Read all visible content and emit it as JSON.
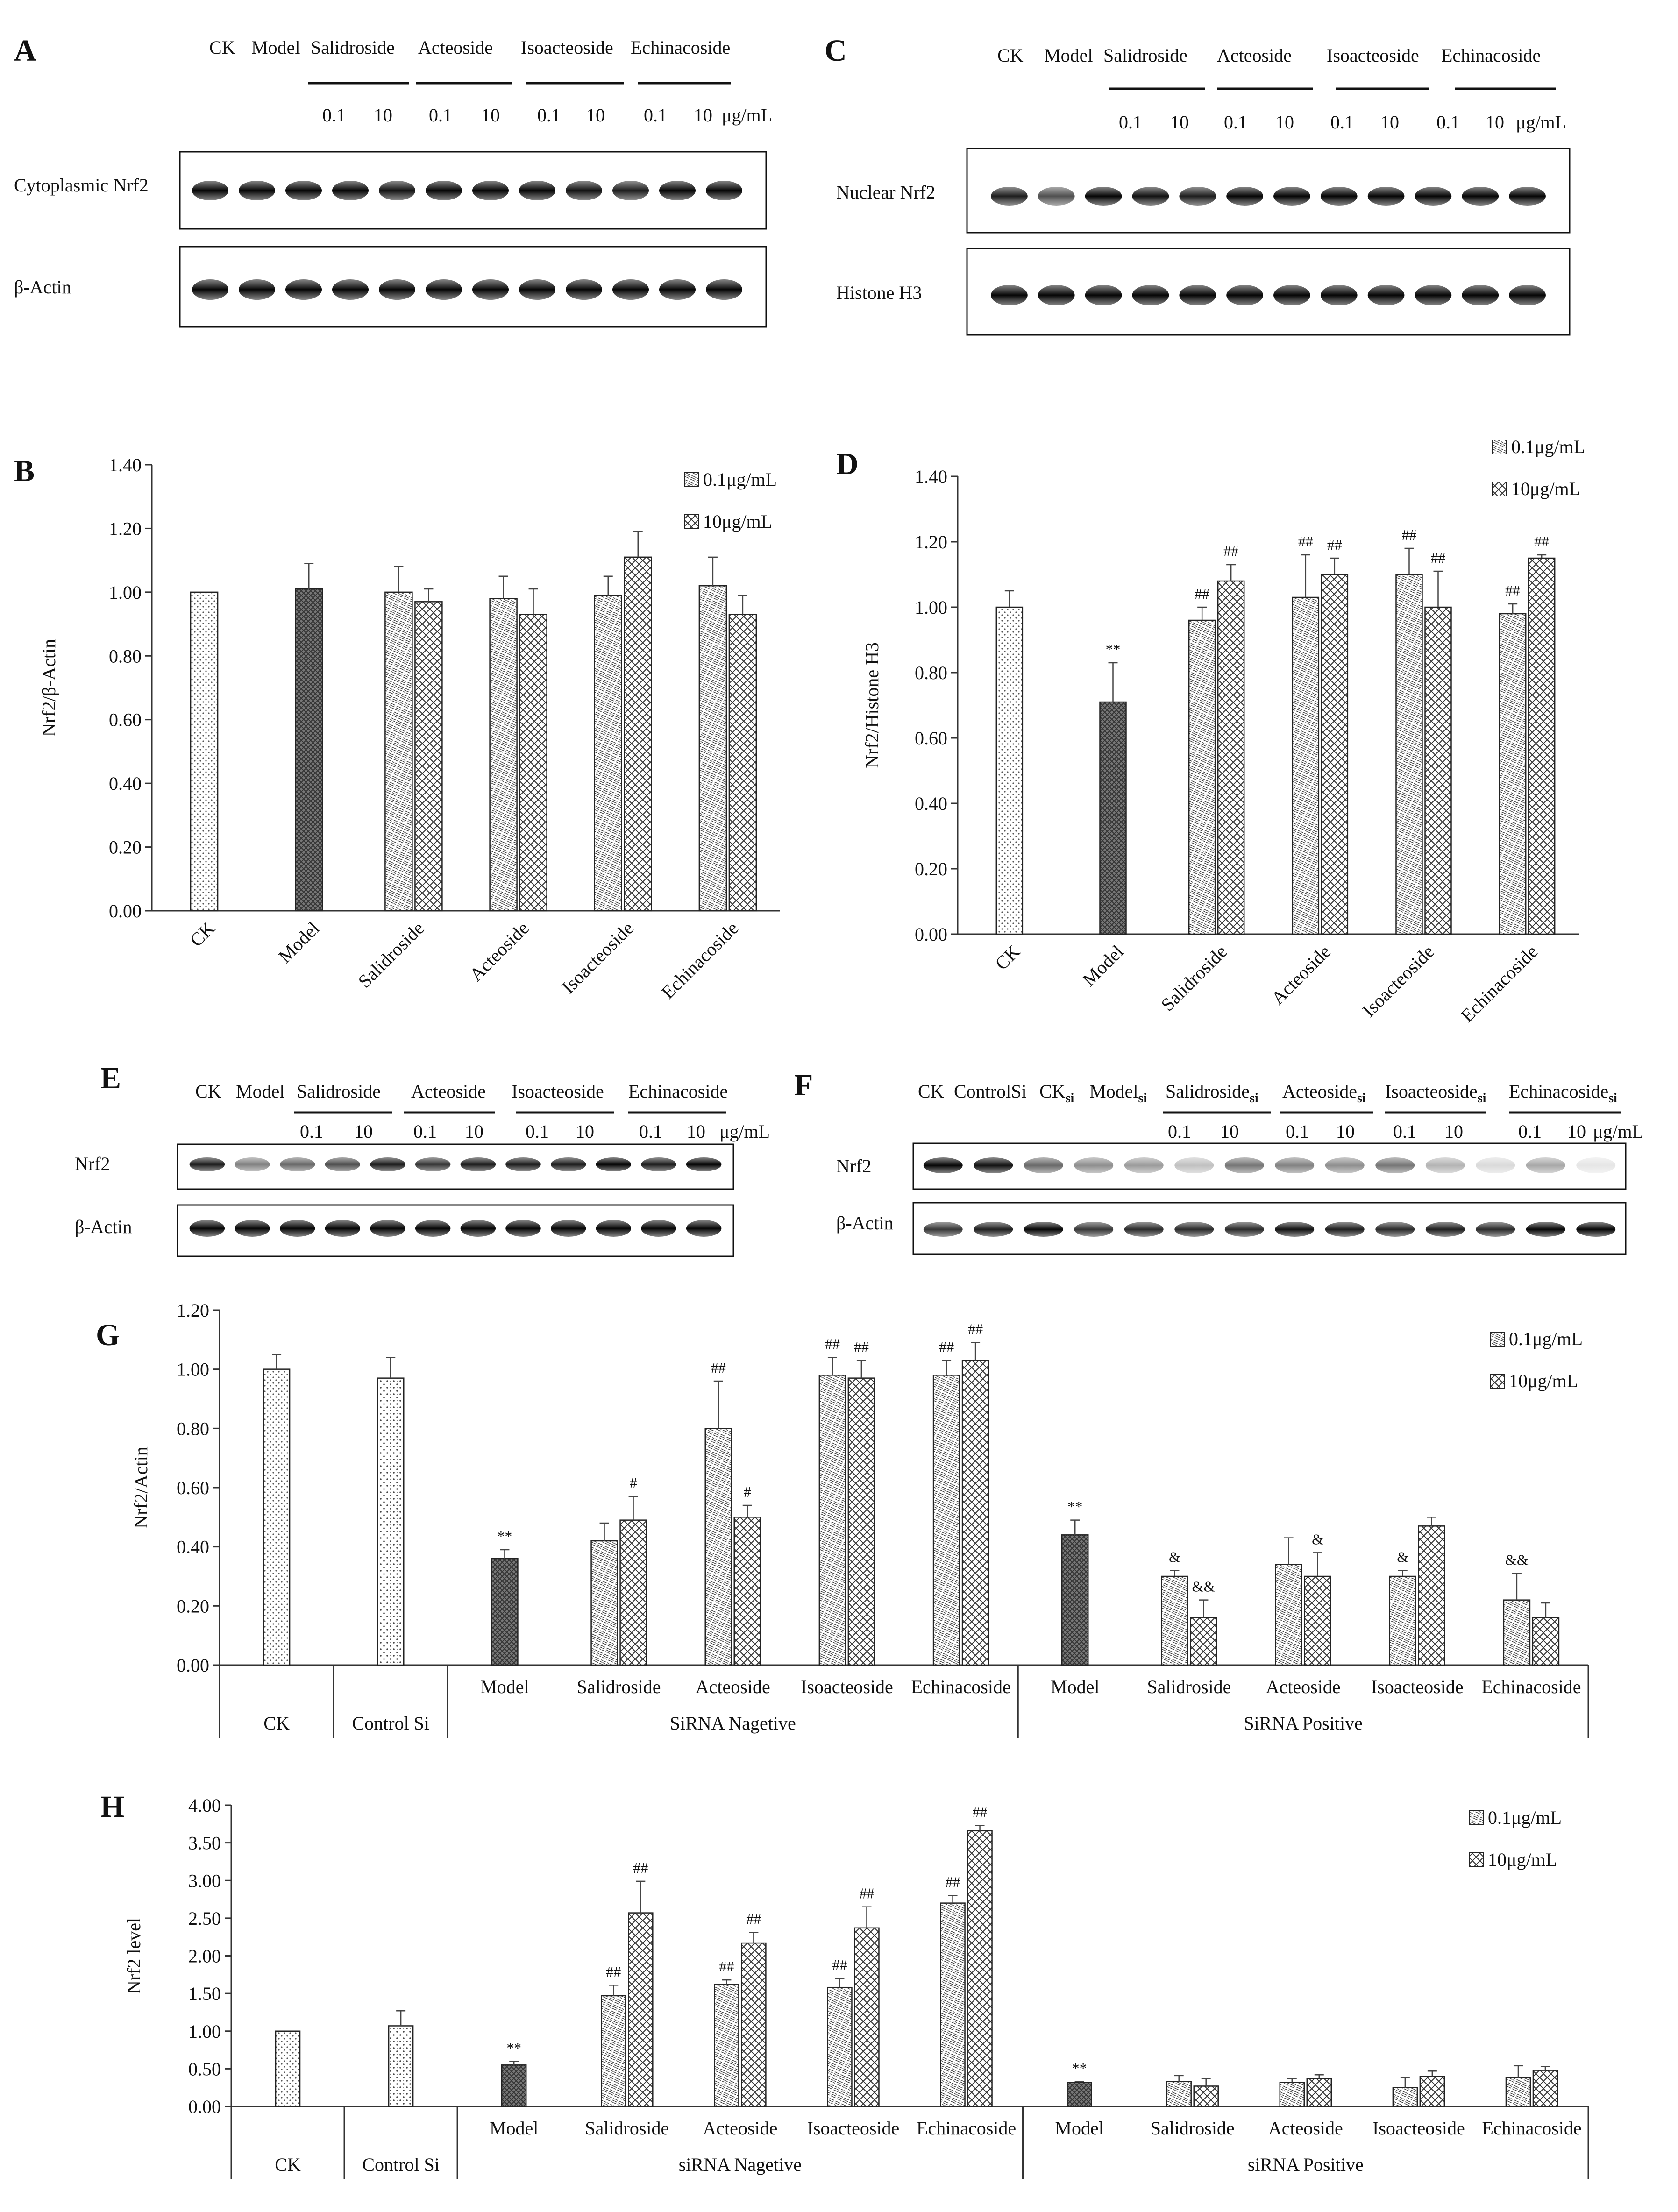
{
  "figure": {
    "panel_letters": [
      "A",
      "B",
      "C",
      "D",
      "E",
      "F",
      "G",
      "H"
    ],
    "units": "μg/mL",
    "dose_low": "0.1",
    "dose_high": "10"
  },
  "blots": {
    "A": {
      "groups": [
        "CK",
        "Model",
        "Salidroside",
        "Acteoside",
        "Isoacteoside",
        "Echinacoside"
      ],
      "rows": [
        "Cytoplasmic Nrf2",
        "β-Actin"
      ]
    },
    "C": {
      "groups": [
        "CK",
        "Model",
        "Salidroside",
        "Acteoside",
        "Isoacteoside",
        "Echinacoside"
      ],
      "rows": [
        "Nuclear Nrf2",
        "Histone H3"
      ]
    },
    "E": {
      "groups": [
        "CK",
        "Model",
        "Salidroside",
        "Acteoside",
        "Isoacteoside",
        "Echinacoside"
      ],
      "rows": [
        "Nrf2",
        "β-Actin"
      ]
    },
    "F": {
      "groups": [
        "CK",
        "ControlSi",
        "CK",
        "Model",
        "Salidroside",
        "Acteoside",
        "Isoacteoside",
        "Echinacoside"
      ],
      "subscript": "si",
      "rows": [
        "Nrf2",
        "β-Actin"
      ]
    }
  },
  "chart_data": [
    {
      "panel": "B",
      "type": "bar",
      "ylabel": "Nrf2/β-Actin",
      "ylim": [
        0,
        1.4
      ],
      "yticks": [
        "0.00",
        "0.20",
        "0.40",
        "0.60",
        "0.80",
        "1.00",
        "1.20",
        "1.40"
      ],
      "legend": [
        "0.1μg/mL",
        "10μg/mL"
      ],
      "categories": [
        "CK",
        "Model",
        "Salidroside",
        "Acteoside",
        "Isoacteoside",
        "Echinacoside"
      ],
      "bars": [
        {
          "cat": 0,
          "series": "ctrl",
          "value": 1.0,
          "err": 0
        },
        {
          "cat": 1,
          "series": "model",
          "value": 1.01,
          "err": 0.08
        },
        {
          "cat": 2,
          "series": "low",
          "value": 1.0,
          "err": 0.08
        },
        {
          "cat": 2,
          "series": "high",
          "value": 0.97,
          "err": 0.04
        },
        {
          "cat": 3,
          "series": "low",
          "value": 0.98,
          "err": 0.07
        },
        {
          "cat": 3,
          "series": "high",
          "value": 0.93,
          "err": 0.08
        },
        {
          "cat": 4,
          "series": "low",
          "value": 0.99,
          "err": 0.06
        },
        {
          "cat": 4,
          "series": "high",
          "value": 1.11,
          "err": 0.08
        },
        {
          "cat": 5,
          "series": "low",
          "value": 1.02,
          "err": 0.09
        },
        {
          "cat": 5,
          "series": "high",
          "value": 0.93,
          "err": 0.06
        }
      ]
    },
    {
      "panel": "D",
      "type": "bar",
      "ylabel": "Nrf2/Histone H3",
      "ylim": [
        0,
        1.4
      ],
      "yticks": [
        "0.00",
        "0.20",
        "0.40",
        "0.60",
        "0.80",
        "1.00",
        "1.20",
        "1.40"
      ],
      "legend": [
        "0.1μg/mL",
        "10μg/mL"
      ],
      "categories": [
        "CK",
        "Model",
        "Salidroside",
        "Acteoside",
        "Isoacteoside",
        "Echinacoside"
      ],
      "bars": [
        {
          "cat": 0,
          "series": "ctrl",
          "value": 1.0,
          "err": 0.05
        },
        {
          "cat": 1,
          "series": "model",
          "value": 0.71,
          "err": 0.12,
          "sig": "**"
        },
        {
          "cat": 2,
          "series": "low",
          "value": 0.96,
          "err": 0.04,
          "sig": "##"
        },
        {
          "cat": 2,
          "series": "high",
          "value": 1.08,
          "err": 0.05,
          "sig": "##"
        },
        {
          "cat": 3,
          "series": "low",
          "value": 1.03,
          "err": 0.13,
          "sig": "##"
        },
        {
          "cat": 3,
          "series": "high",
          "value": 1.1,
          "err": 0.05,
          "sig": "##"
        },
        {
          "cat": 4,
          "series": "low",
          "value": 1.1,
          "err": 0.08,
          "sig": "##"
        },
        {
          "cat": 4,
          "series": "high",
          "value": 1.0,
          "err": 0.11,
          "sig": "##"
        },
        {
          "cat": 5,
          "series": "low",
          "value": 0.98,
          "err": 0.03,
          "sig": "##"
        },
        {
          "cat": 5,
          "series": "high",
          "value": 1.15,
          "err": 0.01,
          "sig": "##"
        }
      ]
    },
    {
      "panel": "G",
      "type": "bar",
      "ylabel": "Nrf2/Actin",
      "ylim": [
        0,
        1.2
      ],
      "yticks": [
        "0.00",
        "0.20",
        "0.40",
        "0.60",
        "0.80",
        "1.00",
        "1.20"
      ],
      "legend": [
        "0.1μg/mL",
        "10μg/mL"
      ],
      "categories": [
        "CK",
        "Control Si",
        "Model",
        "Salidroside",
        "Acteoside",
        "Isoacteoside",
        "Echinacoside",
        "Model",
        "Salidroside",
        "Acteoside",
        "Isoacteoside",
        "Echinacoside"
      ],
      "groups": [
        {
          "label": "CK",
          "from": 0,
          "to": 0
        },
        {
          "label": "Control Si",
          "from": 1,
          "to": 1
        },
        {
          "label": "SiRNA Nagetive",
          "from": 2,
          "to": 6
        },
        {
          "label": "SiRNA Positive",
          "from": 7,
          "to": 11
        }
      ],
      "bars": [
        {
          "cat": 0,
          "series": "ctrl",
          "value": 1.0,
          "err": 0.05
        },
        {
          "cat": 1,
          "series": "ctrl2",
          "value": 0.97,
          "err": 0.07
        },
        {
          "cat": 2,
          "series": "model",
          "value": 0.36,
          "err": 0.03,
          "sig": "**"
        },
        {
          "cat": 3,
          "series": "low",
          "value": 0.42,
          "err": 0.06
        },
        {
          "cat": 3,
          "series": "high",
          "value": 0.49,
          "err": 0.08,
          "sig": "#"
        },
        {
          "cat": 4,
          "series": "low",
          "value": 0.8,
          "err": 0.16,
          "sig": "##"
        },
        {
          "cat": 4,
          "series": "high",
          "value": 0.5,
          "err": 0.04,
          "sig": "#"
        },
        {
          "cat": 5,
          "series": "low",
          "value": 0.98,
          "err": 0.06,
          "sig": "##"
        },
        {
          "cat": 5,
          "series": "high",
          "value": 0.97,
          "err": 0.06,
          "sig": "##"
        },
        {
          "cat": 6,
          "series": "low",
          "value": 0.98,
          "err": 0.05,
          "sig": "##"
        },
        {
          "cat": 6,
          "series": "high",
          "value": 1.03,
          "err": 0.06,
          "sig": "##"
        },
        {
          "cat": 7,
          "series": "model",
          "value": 0.44,
          "err": 0.05,
          "sig": "**"
        },
        {
          "cat": 8,
          "series": "low",
          "value": 0.3,
          "err": 0.02,
          "sig": "&"
        },
        {
          "cat": 8,
          "series": "high",
          "value": 0.16,
          "err": 0.06,
          "sig": "&&"
        },
        {
          "cat": 9,
          "series": "low",
          "value": 0.34,
          "err": 0.09
        },
        {
          "cat": 9,
          "series": "high",
          "value": 0.3,
          "err": 0.08,
          "sig": "&"
        },
        {
          "cat": 10,
          "series": "low",
          "value": 0.3,
          "err": 0.02,
          "sig": "&"
        },
        {
          "cat": 10,
          "series": "high",
          "value": 0.47,
          "err": 0.03
        },
        {
          "cat": 11,
          "series": "low",
          "value": 0.22,
          "err": 0.09,
          "sig": "&&"
        },
        {
          "cat": 11,
          "series": "high",
          "value": 0.16,
          "err": 0.05
        }
      ]
    },
    {
      "panel": "H",
      "type": "bar",
      "ylabel": "Nrf2  level",
      "ylim": [
        0,
        4
      ],
      "yticks": [
        "0.00",
        "0.50",
        "1.00",
        "1.50",
        "2.00",
        "2.50",
        "3.00",
        "3.50",
        "4.00"
      ],
      "legend": [
        "0.1μg/mL",
        "10μg/mL"
      ],
      "categories": [
        "CK",
        "Control Si",
        "Model",
        "Salidroside",
        "Acteoside",
        "Isoacteoside",
        "Echinacoside",
        "Model",
        "Salidroside",
        "Acteoside",
        "Isoacteoside",
        "Echinacoside"
      ],
      "groups": [
        {
          "label": "CK",
          "from": 0,
          "to": 0
        },
        {
          "label": "Control Si",
          "from": 1,
          "to": 1
        },
        {
          "label": "siRNA Nagetive",
          "from": 2,
          "to": 6
        },
        {
          "label": "siRNA Positive",
          "from": 7,
          "to": 11
        }
      ],
      "bars": [
        {
          "cat": 0,
          "series": "ctrl",
          "value": 1.0,
          "err": 0
        },
        {
          "cat": 1,
          "series": "ctrl2",
          "value": 1.07,
          "err": 0.2
        },
        {
          "cat": 2,
          "series": "model",
          "value": 0.55,
          "err": 0.05,
          "sig": "**"
        },
        {
          "cat": 3,
          "series": "low",
          "value": 1.47,
          "err": 0.14,
          "sig": "##"
        },
        {
          "cat": 3,
          "series": "high",
          "value": 2.57,
          "err": 0.42,
          "sig": "##"
        },
        {
          "cat": 4,
          "series": "low",
          "value": 1.62,
          "err": 0.06,
          "sig": "##"
        },
        {
          "cat": 4,
          "series": "high",
          "value": 2.17,
          "err": 0.14,
          "sig": "##"
        },
        {
          "cat": 5,
          "series": "low",
          "value": 1.58,
          "err": 0.12,
          "sig": "##"
        },
        {
          "cat": 5,
          "series": "high",
          "value": 2.37,
          "err": 0.28,
          "sig": "##"
        },
        {
          "cat": 6,
          "series": "low",
          "value": 2.7,
          "err": 0.1,
          "sig": "##"
        },
        {
          "cat": 6,
          "series": "high",
          "value": 3.66,
          "err": 0.07,
          "sig": "##"
        },
        {
          "cat": 7,
          "series": "model",
          "value": 0.32,
          "err": 0.01,
          "sig": "**"
        },
        {
          "cat": 8,
          "series": "low",
          "value": 0.33,
          "err": 0.08
        },
        {
          "cat": 8,
          "series": "high",
          "value": 0.27,
          "err": 0.1
        },
        {
          "cat": 9,
          "series": "low",
          "value": 0.32,
          "err": 0.05
        },
        {
          "cat": 9,
          "series": "high",
          "value": 0.37,
          "err": 0.05
        },
        {
          "cat": 10,
          "series": "low",
          "value": 0.25,
          "err": 0.13
        },
        {
          "cat": 10,
          "series": "high",
          "value": 0.4,
          "err": 0.07
        },
        {
          "cat": 11,
          "series": "low",
          "value": 0.38,
          "err": 0.16
        },
        {
          "cat": 11,
          "series": "high",
          "value": 0.48,
          "err": 0.05
        }
      ]
    }
  ]
}
